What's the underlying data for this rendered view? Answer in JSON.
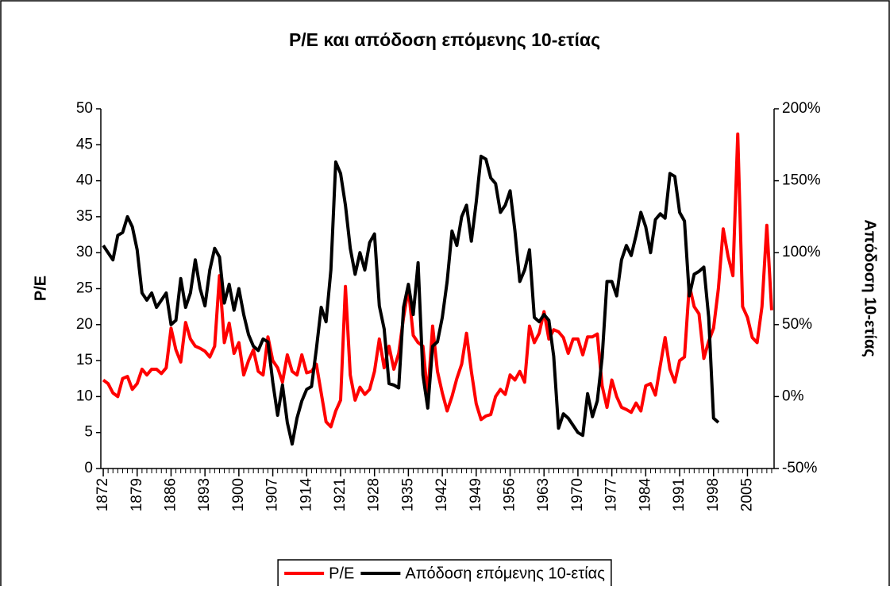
{
  "chart_data": {
    "type": "line",
    "title": "P/E και απόδοση επόμενης 10-ετίας",
    "ylabel": "P/E",
    "y2label": "Απόδοση 10-ετίας",
    "x": [
      1872,
      1873,
      1874,
      1875,
      1876,
      1877,
      1878,
      1879,
      1880,
      1881,
      1882,
      1883,
      1884,
      1885,
      1886,
      1887,
      1888,
      1889,
      1890,
      1891,
      1892,
      1893,
      1894,
      1895,
      1896,
      1897,
      1898,
      1899,
      1900,
      1901,
      1902,
      1903,
      1904,
      1905,
      1906,
      1907,
      1908,
      1909,
      1910,
      1911,
      1912,
      1913,
      1914,
      1915,
      1916,
      1917,
      1918,
      1919,
      1920,
      1921,
      1922,
      1923,
      1924,
      1925,
      1926,
      1927,
      1928,
      1929,
      1930,
      1931,
      1932,
      1933,
      1934,
      1935,
      1936,
      1937,
      1938,
      1939,
      1940,
      1941,
      1942,
      1943,
      1944,
      1945,
      1946,
      1947,
      1948,
      1949,
      1950,
      1951,
      1952,
      1953,
      1954,
      1955,
      1956,
      1957,
      1958,
      1959,
      1960,
      1961,
      1962,
      1963,
      1964,
      1965,
      1966,
      1967,
      1968,
      1969,
      1970,
      1971,
      1972,
      1973,
      1974,
      1975,
      1976,
      1977,
      1978,
      1979,
      1980,
      1981,
      1982,
      1983,
      1984,
      1985,
      1986,
      1987,
      1988,
      1989,
      1990,
      1991,
      1992,
      1993,
      1994,
      1995,
      1996,
      1997,
      1998,
      1999,
      2000,
      2001,
      2002,
      2003,
      2004,
      2005,
      2006,
      2007,
      2008,
      2009,
      2010
    ],
    "xlim": [
      1871.5,
      2010.5
    ],
    "xticks": [
      1872,
      1879,
      1886,
      1893,
      1900,
      1907,
      1914,
      1921,
      1928,
      1935,
      1942,
      1949,
      1956,
      1963,
      1970,
      1977,
      1984,
      1991,
      1998,
      2005
    ],
    "ylim": [
      0,
      50
    ],
    "yticks": [
      0,
      5,
      10,
      15,
      20,
      25,
      30,
      35,
      40,
      45,
      50
    ],
    "y2lim": [
      -50,
      200
    ],
    "y2ticks": [
      {
        "value": -50,
        "label": "-50%"
      },
      {
        "value": 0,
        "label": "0%"
      },
      {
        "value": 50,
        "label": "50%"
      },
      {
        "value": 100,
        "label": "100%"
      },
      {
        "value": 150,
        "label": "150%"
      },
      {
        "value": 200,
        "label": "200%"
      }
    ],
    "legend": "bottom",
    "series": [
      {
        "name": "P/E",
        "color": "#ff0000",
        "values": [
          12.3,
          11.8,
          10.5,
          10,
          12.5,
          12.8,
          11,
          11.8,
          13.8,
          13,
          13.8,
          13.8,
          13.2,
          14,
          19.5,
          16.5,
          14.8,
          20.3,
          18,
          17,
          16.7,
          16.3,
          15.5,
          17,
          26.8,
          17.5,
          20.2,
          16,
          17.5,
          13,
          15,
          16.5,
          13.5,
          13,
          18.3,
          15,
          14,
          12,
          15.8,
          13.5,
          13,
          15.8,
          13.3,
          13.5,
          14.5,
          10.5,
          6.5,
          5.8,
          8,
          9.5,
          25.3,
          13,
          9.5,
          11.3,
          10.3,
          11,
          13.5,
          18,
          14,
          17,
          13.8,
          16,
          21,
          25,
          18.5,
          17.5,
          17,
          10,
          19.8,
          13.5,
          10.5,
          8,
          10,
          12.5,
          14.5,
          18.8,
          13.5,
          9,
          6.8,
          7.3,
          7.5,
          10,
          11,
          10.3,
          13,
          12.3,
          13.5,
          12,
          19.8,
          17.5,
          18.8,
          21.8,
          18,
          19.3,
          19,
          18.2,
          16,
          18,
          18,
          15.8,
          18.3,
          18.3,
          18.7,
          11.5,
          8.5,
          12.3,
          10,
          8.5,
          8.2,
          7.8,
          9.1,
          8,
          11.5,
          11.8,
          10.2,
          14.3,
          18.2,
          13.8,
          12,
          15,
          15.5,
          25.5,
          22.5,
          21.5,
          15.3,
          17.7,
          19.5,
          25,
          33.3,
          29.5,
          26.8,
          46.5,
          22.5,
          21,
          18.2,
          17.5,
          22.5,
          33.8,
          22
        ]
      },
      {
        "name": "Απόδοση επόμενης 10-ετίας",
        "color": "#000000",
        "axis": "y2",
        "values": [
          105,
          100,
          95,
          112,
          114,
          125,
          118,
          102,
          72,
          67,
          72,
          62,
          67,
          72,
          50,
          53,
          82,
          62,
          72,
          95,
          75,
          63,
          88,
          103,
          97,
          65,
          78,
          60,
          75,
          57,
          43,
          35,
          32,
          40,
          38,
          10,
          -13,
          8,
          -18,
          -33,
          -15,
          -3,
          5,
          7,
          33,
          62,
          52,
          88,
          163,
          155,
          133,
          103,
          85,
          100,
          88,
          107,
          113,
          63,
          47,
          9,
          8,
          6,
          62,
          78,
          57,
          93,
          15,
          -8,
          35,
          38,
          55,
          80,
          115,
          105,
          125,
          133,
          108,
          135,
          167,
          165,
          152,
          148,
          128,
          133,
          143,
          115,
          80,
          88,
          102,
          55,
          52,
          57,
          53,
          28,
          -22,
          -12,
          -15,
          -20,
          -25,
          -27,
          2,
          -14,
          -3,
          27,
          80,
          80,
          70,
          95,
          105,
          98,
          112,
          128,
          118,
          100,
          123,
          127,
          124,
          155,
          153,
          128,
          122,
          70,
          85,
          87,
          90,
          55,
          -15,
          -18,
          null,
          null,
          null,
          null,
          null,
          null,
          null,
          null,
          null,
          null,
          null
        ]
      }
    ]
  }
}
